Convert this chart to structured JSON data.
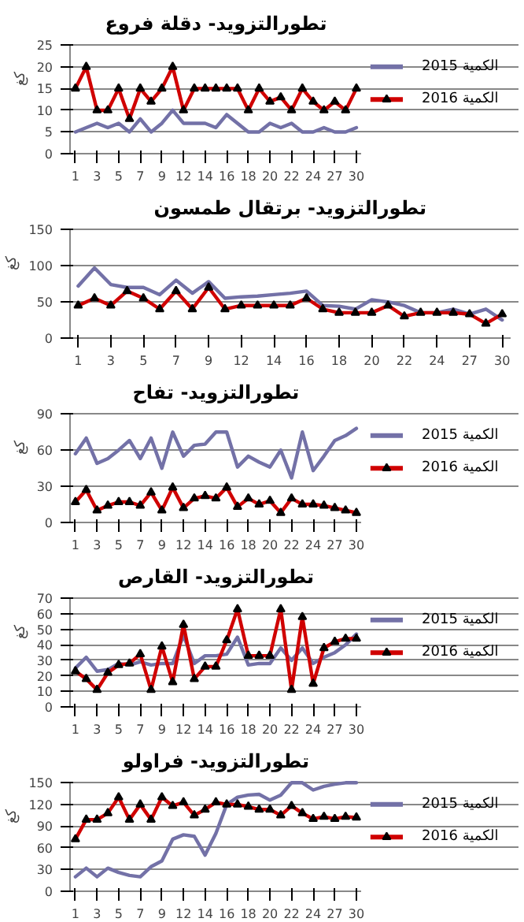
{
  "chart_data": [
    {
      "type": "line",
      "title": "تطورالتزويد- دقلة فروع",
      "ylabel": "كغ",
      "categories": [
        "1",
        null,
        "3",
        null,
        "5",
        null,
        "7",
        null,
        "9",
        null,
        "12",
        null,
        "14",
        null,
        "16",
        null,
        "18",
        null,
        "20",
        null,
        "22",
        null,
        "24",
        null,
        "27",
        null,
        "30"
      ],
      "ylim": [
        0,
        25
      ],
      "yticks": [
        0,
        5,
        10,
        15,
        20,
        25
      ],
      "grid": "y",
      "legend": "right",
      "series": [
        {
          "name": "2015 الكمية",
          "color": "#7371a7",
          "marker": "none",
          "values": [
            5,
            6,
            7,
            6,
            7,
            5,
            8,
            5,
            7,
            10,
            7,
            7,
            7,
            6,
            9,
            7,
            5,
            5,
            7,
            6,
            7,
            5,
            5,
            6,
            5,
            5,
            6
          ]
        },
        {
          "name": "2016 الكمية",
          "color": "#d00000",
          "marker": "triangle",
          "values": [
            15,
            20,
            10,
            10,
            15,
            8,
            15,
            12,
            15,
            20,
            10,
            15,
            15,
            15,
            15,
            15,
            10,
            15,
            12,
            13,
            10,
            15,
            12,
            10,
            12,
            10,
            15
          ]
        }
      ]
    },
    {
      "type": "line",
      "title": "تطورالتزويد- برتقال طمسون",
      "ylabel": "كغ",
      "categories": [
        "1",
        null,
        "3",
        null,
        "5",
        null,
        "7",
        null,
        "9",
        null,
        "12",
        null,
        "14",
        null,
        "16",
        null,
        "18",
        null,
        "20",
        null,
        "22",
        null,
        "24",
        null,
        "27",
        null,
        "30"
      ],
      "ylim": [
        0,
        150
      ],
      "yticks": [
        0,
        50,
        100,
        150
      ],
      "grid": "y",
      "legend": false,
      "series": [
        {
          "color": "#7371a7",
          "marker": "none",
          "values": [
            72,
            97,
            74,
            70,
            70,
            60,
            80,
            62,
            78,
            55,
            57,
            58,
            60,
            62,
            65,
            45,
            44,
            40,
            53,
            50,
            45,
            35,
            35,
            40,
            33,
            40,
            25
          ]
        },
        {
          "color": "#d00000",
          "marker": "triangle",
          "values": [
            45,
            55,
            45,
            65,
            55,
            40,
            65,
            40,
            70,
            40,
            45,
            45,
            45,
            45,
            55,
            40,
            35,
            35,
            35,
            45,
            30,
            35,
            35,
            35,
            33,
            20,
            33
          ]
        }
      ]
    },
    {
      "type": "line",
      "title": "تطورالتزويد- تفاح",
      "ylabel": "كغ",
      "categories": [
        "1",
        null,
        "3",
        null,
        "5",
        null,
        "7",
        null,
        "9",
        null,
        "12",
        null,
        "14",
        null,
        "16",
        null,
        "18",
        null,
        "20",
        null,
        "22",
        null,
        "24",
        null,
        "27",
        null,
        "30"
      ],
      "ylim": [
        0,
        90
      ],
      "yticks": [
        0,
        30,
        60,
        90
      ],
      "grid": "y",
      "legend": "right",
      "series": [
        {
          "name": "2015 الكمية",
          "color": "#7371a7",
          "marker": "none",
          "values": [
            57,
            70,
            49,
            53,
            60,
            68,
            53,
            70,
            45,
            75,
            55,
            64,
            65,
            75,
            75,
            46,
            55,
            50,
            46,
            60,
            37,
            75,
            43,
            55,
            68,
            72,
            78
          ]
        },
        {
          "name": "2016 الكمية",
          "color": "#d00000",
          "marker": "triangle",
          "values": [
            17,
            27,
            10,
            14,
            17,
            17,
            14,
            25,
            10,
            29,
            12,
            20,
            22,
            20,
            29,
            13,
            20,
            15,
            18,
            8,
            20,
            15,
            15,
            14,
            12,
            10,
            8
          ]
        }
      ]
    },
    {
      "type": "line",
      "title": "تطورالتزويد- القارص",
      "ylabel": "كغ",
      "categories": [
        "1",
        null,
        "3",
        null,
        "5",
        null,
        "7",
        null,
        "9",
        null,
        "12",
        null,
        "14",
        null,
        "16",
        null,
        "18",
        null,
        "20",
        null,
        "22",
        null,
        "24",
        null,
        "27",
        null,
        "30"
      ],
      "ylim": [
        0,
        70
      ],
      "yticks": [
        0,
        10,
        20,
        30,
        40,
        50,
        60,
        70
      ],
      "grid": "y",
      "legend": "right",
      "series": [
        {
          "name": "2015 الكمية",
          "color": "#7371a7",
          "marker": "none",
          "values": [
            25,
            32,
            23,
            24,
            28,
            27,
            29,
            27,
            28,
            28,
            46,
            28,
            33,
            33,
            34,
            45,
            27,
            28,
            28,
            38,
            30,
            38,
            28,
            32,
            35,
            40,
            47
          ]
        },
        {
          "name": "2016 الكمية",
          "color": "#d00000",
          "marker": "triangle",
          "values": [
            23,
            18,
            11,
            22,
            27,
            28,
            34,
            11,
            39,
            16,
            53,
            18,
            26,
            26,
            43,
            63,
            33,
            33,
            33,
            63,
            11,
            58,
            15,
            38,
            42,
            44,
            44
          ]
        }
      ]
    },
    {
      "type": "line",
      "title": "تطورالتزويد- فراولو",
      "ylabel": "كغ",
      "categories": [
        "1",
        null,
        "3",
        null,
        "5",
        null,
        "7",
        null,
        "9",
        null,
        "12",
        null,
        "14",
        null,
        "16",
        null,
        "18",
        null,
        "20",
        null,
        "22",
        null,
        "24",
        null,
        "27",
        null,
        "30"
      ],
      "ylim": [
        0,
        150
      ],
      "yticks": [
        0,
        30,
        60,
        90,
        120,
        150
      ],
      "grid": "y",
      "legend": "right",
      "series": [
        {
          "name": "2015 الكمية",
          "color": "#7371a7",
          "marker": "none",
          "values": [
            20,
            32,
            20,
            32,
            26,
            22,
            20,
            34,
            42,
            72,
            78,
            76,
            50,
            80,
            120,
            130,
            133,
            134,
            126,
            133,
            150,
            150,
            140,
            145,
            148,
            150,
            150
          ]
        },
        {
          "name": "2016 الكمية",
          "color": "#d00000",
          "marker": "triangle",
          "values": [
            72,
            99,
            99,
            108,
            130,
            99,
            120,
            99,
            130,
            118,
            123,
            105,
            113,
            123,
            120,
            120,
            117,
            113,
            113,
            105,
            118,
            108,
            100,
            103,
            100,
            103,
            102
          ]
        }
      ]
    }
  ]
}
